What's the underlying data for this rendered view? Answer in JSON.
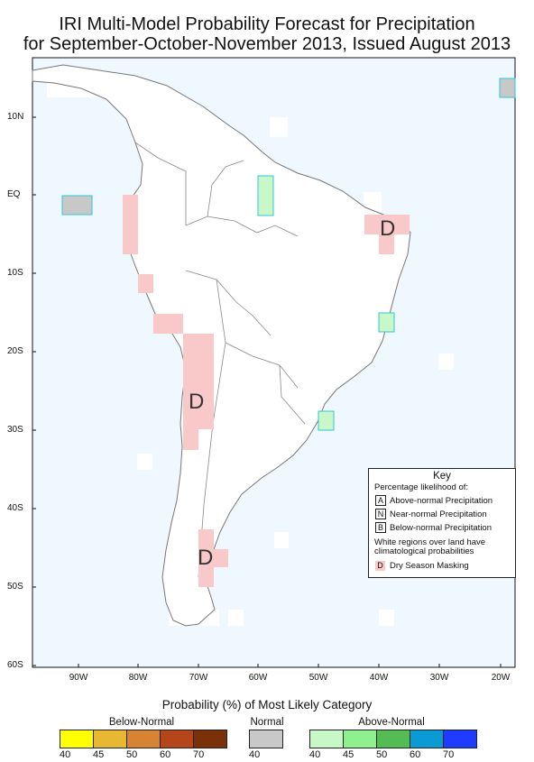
{
  "title": {
    "line1": "IRI Multi-Model Probability Forecast for Precipitation",
    "line2": "for September-October-November 2013, Issued August 2013"
  },
  "axes": {
    "lat_labels": [
      "10N",
      "EQ",
      "10S",
      "20S",
      "30S",
      "40S",
      "50S",
      "60S"
    ],
    "lon_labels": [
      "90W",
      "80W",
      "70W",
      "60W",
      "50W",
      "40W",
      "30W",
      "20W"
    ]
  },
  "markers": {
    "dry_season": [
      "D",
      "D",
      "D"
    ]
  },
  "key": {
    "title": "Key",
    "subtitle": "Percentage likelihood of:",
    "items": [
      {
        "code": "A",
        "label": "Above-normal Precipitation"
      },
      {
        "code": "N",
        "label": "Near-normal Precipitation"
      },
      {
        "code": "B",
        "label": "Below-normal Precipitation"
      }
    ],
    "note_line1": "White regions over land have",
    "note_line2": "climatological probabilities",
    "dry_code": "D",
    "dry_label": "Dry Season Masking"
  },
  "legend": {
    "title": "Probability (%) of Most Likely Category",
    "below": {
      "label": "Below-Normal",
      "ticks": [
        "40",
        "45",
        "50",
        "60",
        "70"
      ],
      "colors": [
        "#ffff00",
        "#e8b832",
        "#d68333",
        "#b5461b",
        "#7a3008"
      ]
    },
    "normal": {
      "label": "Normal",
      "ticks": [
        "40"
      ],
      "colors": [
        "#c8c8c8"
      ]
    },
    "above": {
      "label": "Above-Normal",
      "ticks": [
        "40",
        "45",
        "50",
        "60",
        "70"
      ],
      "colors": [
        "#c8f7c8",
        "#8ef08e",
        "#55bb55",
        "#0a9ad4",
        "#1f3bff"
      ]
    }
  },
  "colors": {
    "ocean": "#f0f8ff",
    "dry_mask": "#f9c9c9",
    "above_40": "#c8f7c8",
    "normal_40": "#c8c8c8",
    "cell_outline": "#30c8d8"
  }
}
